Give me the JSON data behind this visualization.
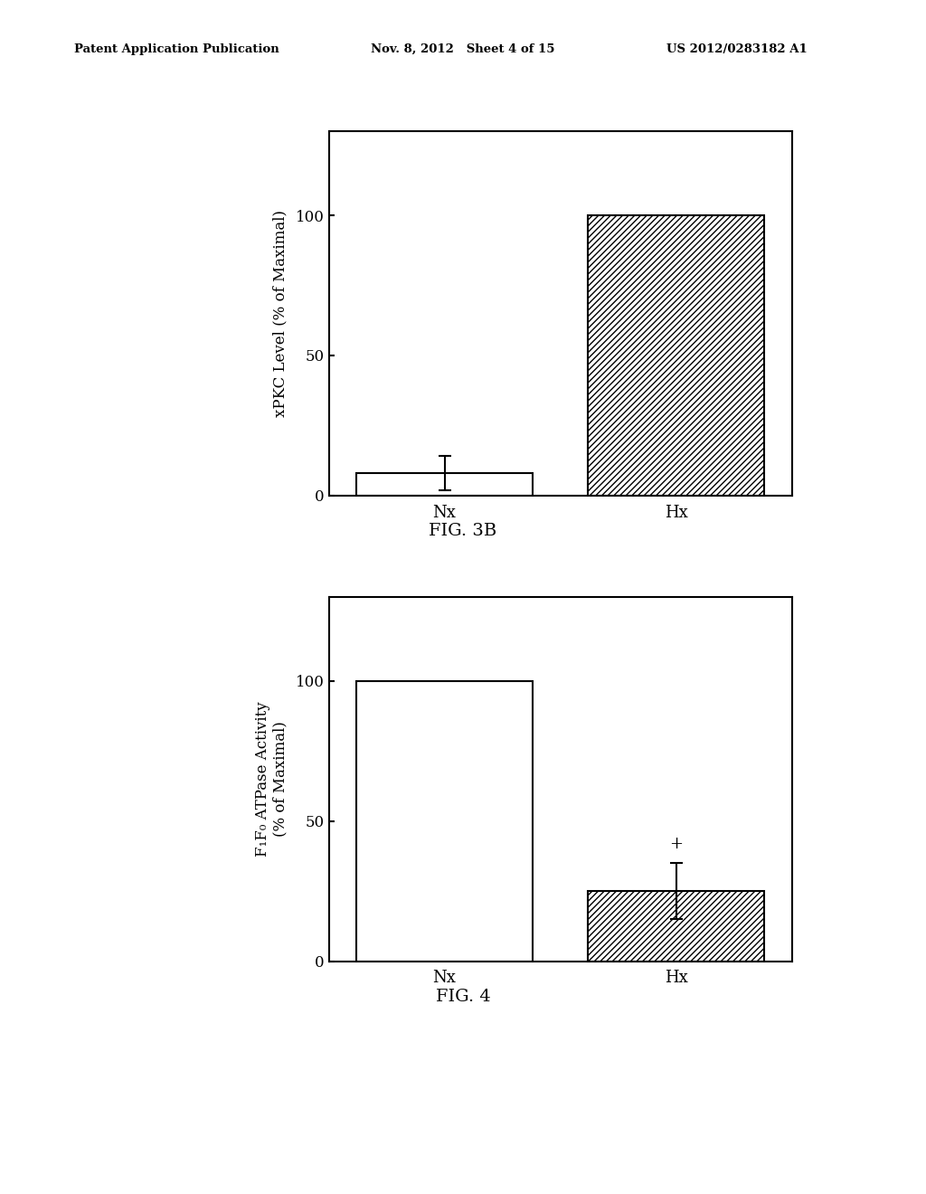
{
  "background_color": "#f5f5f5",
  "header_left": "Patent Application Publication",
  "header_mid": "Nov. 8, 2012   Sheet 4 of 15",
  "header_right": "US 2012/0283182 A1",
  "fig3b": {
    "categories": [
      "Nx",
      "Hx"
    ],
    "values": [
      8,
      100
    ],
    "nx_error": 6,
    "ylabel_line1": "xPKC Level (% of Maximal)",
    "yticks": [
      0,
      50,
      100
    ],
    "ylim": [
      0,
      130
    ],
    "caption": "FIG. 3B"
  },
  "fig4": {
    "categories": [
      "Nx",
      "Hx"
    ],
    "values": [
      100,
      25
    ],
    "hx_error": 10,
    "ylabel_line1": "F",
    "ylabel_line2": "1",
    "ylabel_full": "F₁F₀ ATPase Activity\n(% of Maximal)",
    "yticks": [
      0,
      50,
      100
    ],
    "ylim": [
      0,
      130
    ],
    "caption": "FIG. 4"
  }
}
